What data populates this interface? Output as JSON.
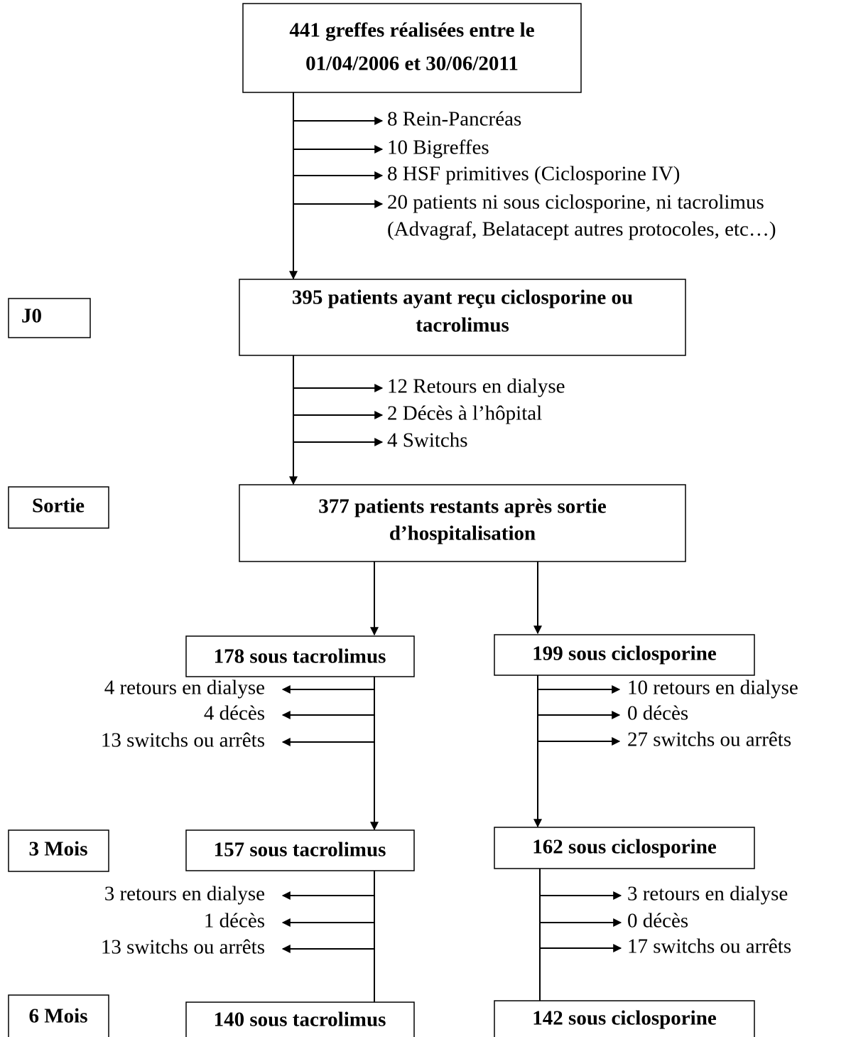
{
  "stages": [
    "J0",
    "Sortie",
    "3 Mois",
    "6 Mois"
  ],
  "start": {
    "lines": [
      "441 greffes réalisées entre le",
      "01/04/2006 et 30/06/2011"
    ],
    "exclusions": [
      [
        "8 Rein-Pancréas"
      ],
      [
        "10 Bigreffes"
      ],
      [
        "8 HSF primitives (Ciclosporine IV)"
      ],
      [
        "20 patients ni sous ciclosporine, ni tacrolimus",
        "(Advagraf, Belatacept autres protocoles, etc…)"
      ]
    ]
  },
  "j0": {
    "lines": [
      "395 patients ayant reçu ciclosporine ou",
      "tacrolimus"
    ],
    "exclusions": [
      "12 Retours en dialyse",
      "2 Décès à l’hôpital",
      "4 Switchs"
    ]
  },
  "sortie": {
    "lines": [
      "377 patients restants après sortie",
      "d’hospitalisation"
    ]
  },
  "tacrolimus": {
    "boxes": [
      "178 sous tacrolimus",
      "157 sous tacrolimus",
      "140 sous tacrolimus"
    ],
    "exclusions": [
      [
        "4 retours en dialyse",
        "4 décès",
        "13 switchs ou arrêts"
      ],
      [
        "3 retours en dialyse",
        "1 décès",
        "13 switchs ou arrêts"
      ]
    ]
  },
  "ciclosporine": {
    "boxes": [
      "199 sous ciclosporine",
      "162 sous ciclosporine",
      "142 sous ciclosporine"
    ],
    "exclusions": [
      [
        "10 retours en dialyse",
        "0 décès",
        "27 switchs ou arrêts"
      ],
      [
        "3 retours en dialyse",
        "0 décès",
        "17 switchs ou arrêts"
      ]
    ]
  }
}
